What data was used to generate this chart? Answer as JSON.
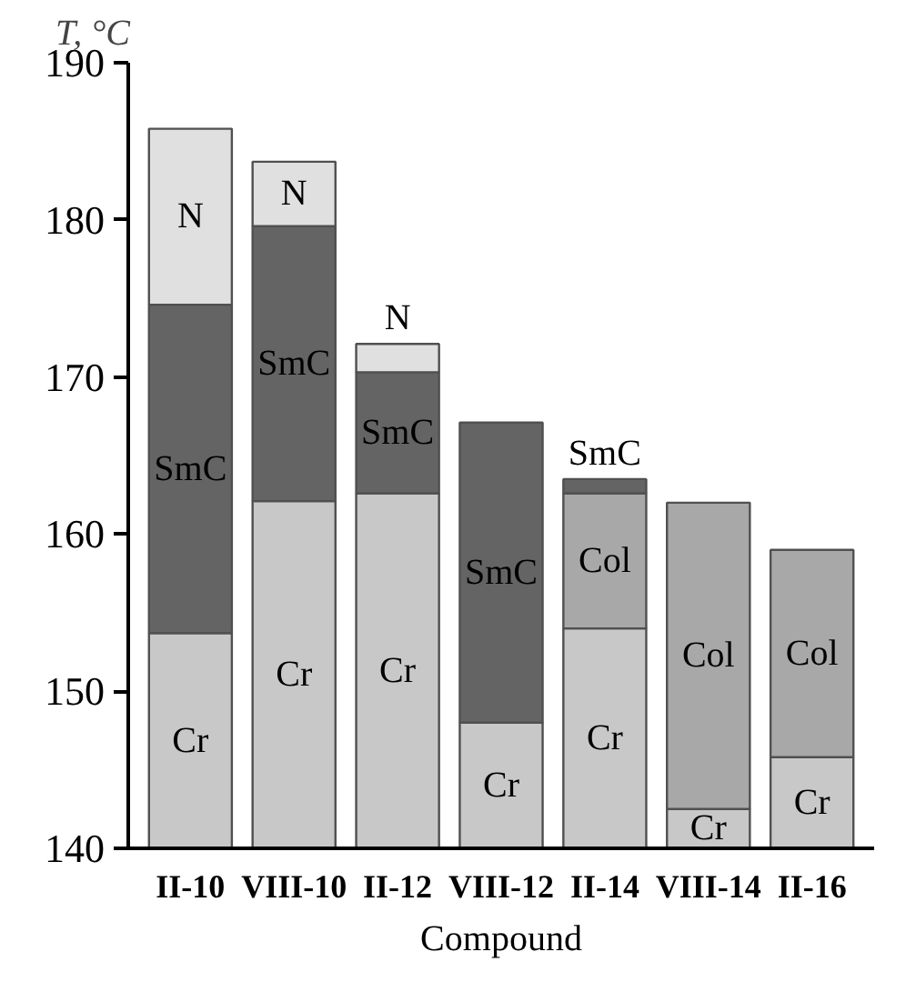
{
  "chart_data": {
    "type": "bar",
    "xlabel": "Compound",
    "ylabel": "T, °C",
    "categories": [
      "II-10",
      "VIII-10",
      "II-12",
      "VIII-12",
      "II-14",
      "VIII-14",
      "II-16"
    ],
    "ylim": [
      140,
      190
    ],
    "yticks": [
      140,
      150,
      160,
      170,
      180,
      190
    ],
    "grid": false,
    "series": [
      {
        "name": "Cr",
        "color": "#c8c8c8",
        "base": [
          140,
          140,
          140,
          140,
          140,
          140,
          140
        ],
        "values": [
          13.7,
          22.1,
          22.6,
          8.0,
          14.0,
          2.5,
          5.8
        ]
      },
      {
        "name": "Col",
        "color": "#a8a8a8",
        "base": [
          null,
          null,
          null,
          null,
          154.0,
          142.5,
          145.8
        ],
        "values": [
          null,
          null,
          null,
          null,
          8.6,
          19.5,
          13.2
        ]
      },
      {
        "name": "SmC",
        "color": "#646464",
        "base": [
          153.7,
          162.1,
          162.6,
          148.0,
          162.6,
          null,
          null
        ],
        "values": [
          20.9,
          17.5,
          7.7,
          19.1,
          0.9,
          null,
          null
        ]
      },
      {
        "name": "N",
        "color": "#e0e0e0",
        "base": [
          174.6,
          179.6,
          170.3,
          null,
          null,
          null,
          null
        ],
        "values": [
          11.2,
          4.1,
          1.8,
          null,
          null,
          null,
          null
        ]
      }
    ]
  }
}
